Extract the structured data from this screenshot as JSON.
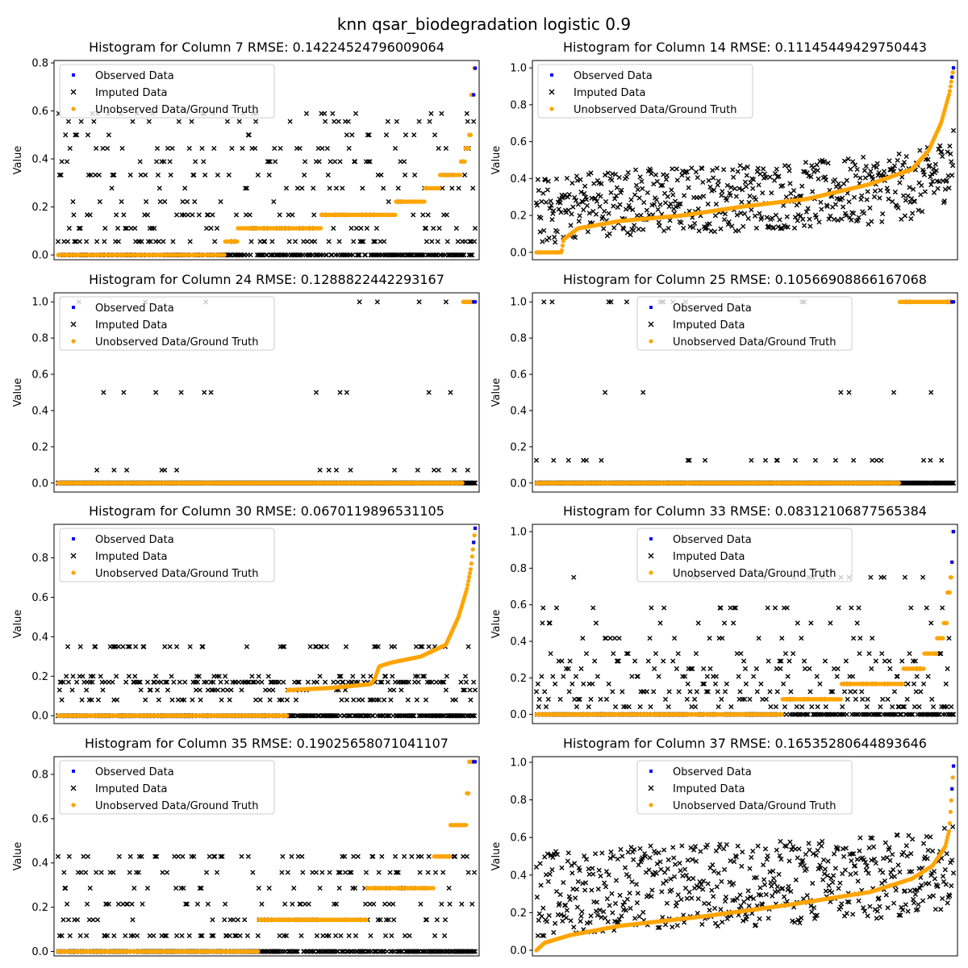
{
  "suptitle": "knn qsar_biodegradation logistic 0.9",
  "legend_labels": [
    "Observed Data",
    "Imputed Data",
    "Unobserved Data/Ground Truth"
  ],
  "colors": {
    "observed": "#0000ff",
    "imputed": "#000000",
    "ground_truth": "#ffa500"
  },
  "chart_data": [
    {
      "type": "scatter",
      "title": "Histogram for Column 7 RMSE: 0.14224524796009064",
      "ylabel": "Value",
      "ylim": [
        -0.02,
        0.81
      ],
      "yticks": [
        0.0,
        0.2,
        0.4,
        0.6,
        0.8
      ],
      "n": 560,
      "legend": "top-left",
      "truth_levels": [
        [
          0.4,
          0.0
        ],
        [
          0.43,
          0.056
        ],
        [
          0.63,
          0.111
        ],
        [
          0.81,
          0.167
        ],
        [
          0.88,
          0.222
        ],
        [
          0.915,
          0.278
        ],
        [
          0.965,
          0.333
        ],
        [
          0.975,
          0.389
        ],
        [
          0.985,
          0.444
        ],
        [
          0.99,
          0.5
        ],
        [
          0.997,
          0.667
        ],
        [
          1.0,
          0.778
        ]
      ],
      "imputed_levels": [
        0.0,
        0.056,
        0.111,
        0.167,
        0.222,
        0.278,
        0.333,
        0.389,
        0.444,
        0.5,
        0.556,
        0.589
      ]
    },
    {
      "type": "scatter",
      "title": "Histogram for Column 14 RMSE: 0.11145449429750443",
      "ylabel": "Value",
      "ylim": [
        -0.04,
        1.04
      ],
      "yticks": [
        0.0,
        0.2,
        0.4,
        0.6,
        0.8,
        1.0
      ],
      "n": 560,
      "legend": "top-left",
      "truth_curve": [
        [
          0,
          0
        ],
        [
          0.06,
          0
        ],
        [
          0.065,
          0.07
        ],
        [
          0.1,
          0.13
        ],
        [
          0.2,
          0.17
        ],
        [
          0.35,
          0.2
        ],
        [
          0.5,
          0.25
        ],
        [
          0.65,
          0.29
        ],
        [
          0.8,
          0.37
        ],
        [
          0.9,
          0.45
        ],
        [
          0.94,
          0.55
        ],
        [
          0.97,
          0.7
        ],
        [
          0.99,
          0.86
        ],
        [
          1,
          1.0
        ]
      ],
      "imputed_range": [
        0.05,
        0.66
      ]
    },
    {
      "type": "scatter",
      "title": "Histogram for Column 24 RMSE: 0.1288822442293167",
      "ylabel": "Value",
      "ylim": [
        -0.05,
        1.05
      ],
      "yticks": [
        0.0,
        0.2,
        0.4,
        0.6,
        0.8,
        1.0
      ],
      "n": 560,
      "legend": "top-left",
      "truth_levels": [
        [
          0.97,
          0.0
        ],
        [
          1.0,
          1.0
        ]
      ],
      "imputed_levels": [
        0.0,
        0.071,
        0.5,
        1.0
      ]
    },
    {
      "type": "scatter",
      "title": "Histogram for Column 25 RMSE: 0.10566908866167068",
      "ylabel": "Value",
      "ylim": [
        -0.05,
        1.05
      ],
      "yticks": [
        0.0,
        0.2,
        0.4,
        0.6,
        0.8,
        1.0
      ],
      "n": 560,
      "legend": "top-center",
      "truth_levels": [
        [
          0.87,
          0.0
        ],
        [
          1.0,
          1.0
        ]
      ],
      "imputed_levels": [
        0.0,
        0.125,
        0.5,
        1.0
      ]
    },
    {
      "type": "scatter",
      "title": "Histogram for Column 30 RMSE: 0.0670119896531105",
      "ylabel": "Value",
      "ylim": [
        -0.04,
        0.97
      ],
      "yticks": [
        0.0,
        0.2,
        0.4,
        0.6,
        0.8
      ],
      "n": 560,
      "legend": "top-left",
      "truth_curve": [
        [
          0,
          0
        ],
        [
          0.55,
          0
        ],
        [
          0.551,
          0.13
        ],
        [
          0.65,
          0.14
        ],
        [
          0.75,
          0.16
        ],
        [
          0.76,
          0.19
        ],
        [
          0.77,
          0.25
        ],
        [
          0.8,
          0.27
        ],
        [
          0.87,
          0.3
        ],
        [
          0.93,
          0.36
        ],
        [
          0.96,
          0.5
        ],
        [
          0.98,
          0.64
        ],
        [
          0.99,
          0.75
        ],
        [
          1,
          0.95
        ]
      ],
      "imputed_range": [
        0.0,
        0.55
      ]
    },
    {
      "type": "scatter",
      "title": "Histogram for Column 33 RMSE: 0.08312106877565384",
      "ylabel": "Value",
      "ylim": [
        -0.05,
        1.04
      ],
      "yticks": [
        0.0,
        0.2,
        0.4,
        0.6,
        0.8,
        1.0
      ],
      "n": 560,
      "legend": "top-center",
      "truth_levels": [
        [
          0.59,
          0.0
        ],
        [
          0.73,
          0.083
        ],
        [
          0.88,
          0.167
        ],
        [
          0.93,
          0.25
        ],
        [
          0.96,
          0.333
        ],
        [
          0.975,
          0.417
        ],
        [
          0.985,
          0.5
        ],
        [
          0.992,
          0.667
        ],
        [
          0.996,
          0.75
        ],
        [
          0.998,
          0.833
        ],
        [
          1.0,
          1.0
        ]
      ],
      "imputed_levels": [
        0.0,
        0.042,
        0.083,
        0.125,
        0.167,
        0.208,
        0.25,
        0.292,
        0.333,
        0.417,
        0.5,
        0.583,
        0.75
      ]
    },
    {
      "type": "scatter",
      "title": "Histogram for Column 35 RMSE: 0.19025658071041107",
      "ylabel": "Value",
      "ylim": [
        -0.02,
        0.88
      ],
      "yticks": [
        0.0,
        0.2,
        0.4,
        0.6,
        0.8
      ],
      "n": 560,
      "legend": "top-left",
      "truth_levels": [
        [
          0.48,
          0.0
        ],
        [
          0.74,
          0.143
        ],
        [
          0.9,
          0.286
        ],
        [
          0.94,
          0.429
        ],
        [
          0.98,
          0.571
        ],
        [
          0.985,
          0.714
        ],
        [
          1.0,
          0.857
        ]
      ],
      "imputed_levels": [
        0.0,
        0.071,
        0.143,
        0.214,
        0.286,
        0.357,
        0.429
      ]
    },
    {
      "type": "scatter",
      "title": "Histogram for Column 37 RMSE: 0.16535280644893646",
      "ylabel": "Value",
      "ylim": [
        -0.03,
        1.03
      ],
      "yticks": [
        0.0,
        0.2,
        0.4,
        0.6,
        0.8,
        1.0
      ],
      "n": 560,
      "legend": "top-center",
      "truth_curve": [
        [
          0,
          0
        ],
        [
          0.02,
          0.04
        ],
        [
          0.08,
          0.08
        ],
        [
          0.2,
          0.13
        ],
        [
          0.4,
          0.18
        ],
        [
          0.6,
          0.24
        ],
        [
          0.8,
          0.31
        ],
        [
          0.9,
          0.38
        ],
        [
          0.95,
          0.45
        ],
        [
          0.98,
          0.55
        ],
        [
          0.99,
          0.64
        ],
        [
          1,
          0.98
        ]
      ],
      "imputed_range": [
        0.1,
        0.85
      ]
    }
  ]
}
